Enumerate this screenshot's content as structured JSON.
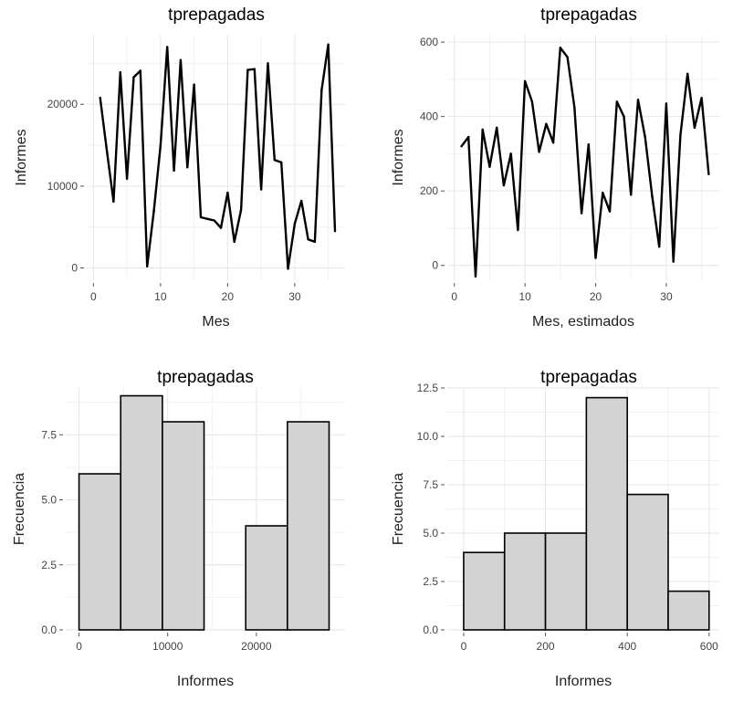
{
  "chart_data": [
    {
      "type": "line",
      "title": "tprepagadas",
      "xlabel": "Mes",
      "ylabel": "Informes",
      "xlim": [
        -1,
        37.5
      ],
      "ylim": [
        -1500,
        28500
      ],
      "xticks": [
        0,
        10,
        20,
        30
      ],
      "yticks": [
        0,
        10000,
        20000
      ],
      "x": [
        1,
        2,
        3,
        4,
        5,
        6,
        7,
        8,
        9,
        10,
        11,
        12,
        13,
        14,
        15,
        16,
        17,
        18,
        19,
        20,
        21,
        22,
        23,
        24,
        25,
        26,
        27,
        28,
        29,
        30,
        31,
        32,
        33,
        34,
        35,
        36
      ],
      "y": [
        20800,
        14300,
        8100,
        23900,
        10900,
        23300,
        24100,
        200,
        6900,
        15000,
        27000,
        11900,
        25400,
        12300,
        22400,
        6200,
        6000,
        5800,
        4900,
        9200,
        3200,
        7100,
        24200,
        24300,
        9600,
        25000,
        13200,
        12900,
        -100,
        5400,
        8200,
        3500,
        3200,
        21700,
        27300,
        4500
      ]
    },
    {
      "type": "line",
      "title": "tprepagadas",
      "xlabel": "Mes, estimados",
      "ylabel": "Informes",
      "xlim": [
        -1,
        37.5
      ],
      "ylim": [
        -40,
        620
      ],
      "xticks": [
        0,
        10,
        20,
        30
      ],
      "yticks": [
        0,
        200,
        400,
        600
      ],
      "x": [
        1,
        2,
        3,
        4,
        5,
        6,
        7,
        8,
        9,
        10,
        11,
        12,
        13,
        14,
        15,
        16,
        17,
        18,
        19,
        20,
        21,
        22,
        23,
        24,
        25,
        26,
        27,
        28,
        29,
        30,
        31,
        32,
        33,
        34,
        35,
        36
      ],
      "y": [
        320,
        345,
        -30,
        365,
        265,
        370,
        215,
        300,
        95,
        495,
        440,
        305,
        380,
        330,
        585,
        560,
        425,
        140,
        325,
        20,
        195,
        145,
        440,
        400,
        190,
        445,
        345,
        185,
        50,
        435,
        10,
        350,
        515,
        370,
        450,
        245
      ]
    },
    {
      "type": "bar",
      "title": "tprepagadas",
      "xlabel": "Informes",
      "ylabel": "Frecuencia",
      "xlim": [
        -1500,
        30000
      ],
      "ylim": [
        0,
        9.3
      ],
      "xticks": [
        0,
        10000,
        20000
      ],
      "yticks": [
        0.0,
        2.5,
        5.0,
        7.5
      ],
      "bins": [
        [
          0,
          4700
        ],
        [
          4700,
          9400
        ],
        [
          9400,
          14100
        ],
        [
          14100,
          18800
        ],
        [
          18800,
          23500
        ],
        [
          23500,
          28200
        ]
      ],
      "values": [
        6,
        9,
        8,
        0,
        4,
        8
      ]
    },
    {
      "type": "bar",
      "title": "tprepagadas",
      "xlabel": "Informes",
      "ylabel": "Frecuencia",
      "xlim": [
        -40,
        625
      ],
      "ylim": [
        0,
        12.5
      ],
      "xticks": [
        0,
        200,
        400,
        600
      ],
      "yticks": [
        0.0,
        2.5,
        5.0,
        7.5,
        10.0,
        12.5
      ],
      "bins": [
        [
          0,
          100
        ],
        [
          100,
          200
        ],
        [
          200,
          300
        ],
        [
          300,
          400
        ],
        [
          400,
          500
        ],
        [
          500,
          600
        ]
      ],
      "values": [
        4,
        5,
        5,
        12,
        7,
        2
      ]
    }
  ]
}
